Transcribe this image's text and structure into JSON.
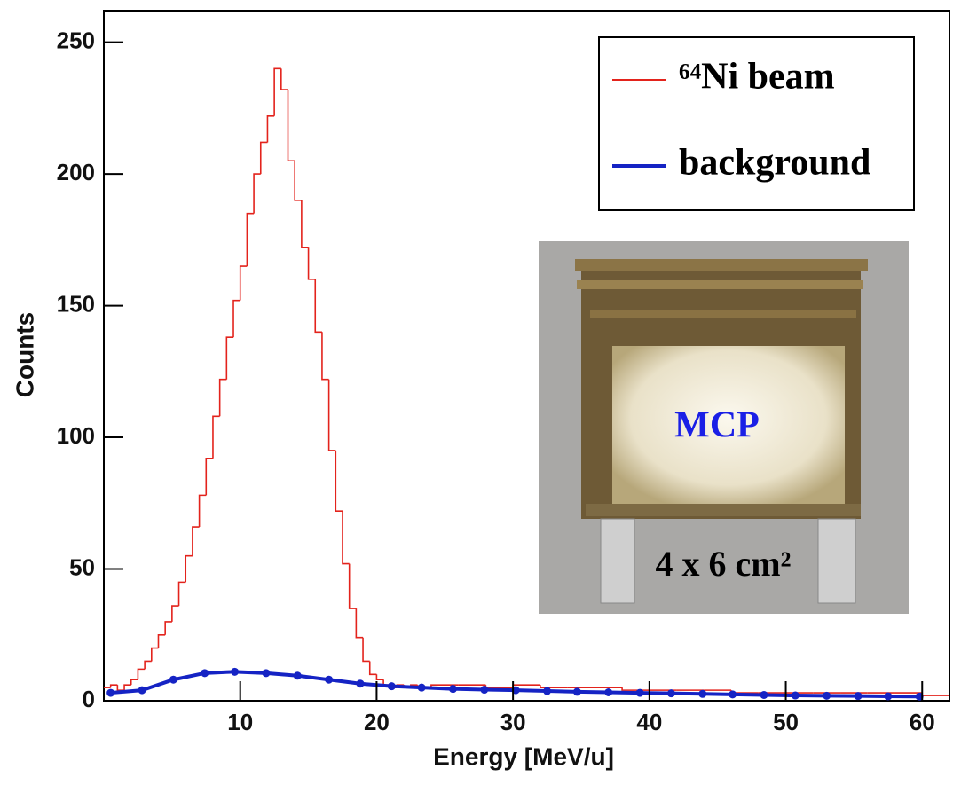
{
  "chart_data": {
    "type": "histogram",
    "xlabel": "Energy [MeV/u]",
    "ylabel": "Counts",
    "bins": [
      0,
      0.5,
      1,
      1.5,
      2,
      2.5,
      3,
      3.5,
      4,
      4.5,
      5,
      5.5,
      6,
      6.5,
      7,
      7.5,
      8,
      8.5,
      9,
      9.5,
      10,
      10.5,
      11,
      11.5,
      12,
      12.5,
      13,
      13.5,
      14,
      14.5,
      15,
      15.5,
      16,
      16.5,
      17,
      17.5,
      18,
      18.5,
      19,
      19.5,
      20,
      20.5,
      21,
      21.5,
      22,
      22.5,
      23,
      23.5,
      24,
      26,
      28,
      30,
      32,
      34,
      36,
      38,
      40,
      42,
      44,
      46,
      48,
      50,
      52,
      54,
      56,
      58,
      60,
      62
    ],
    "series": [
      {
        "name": "⁶⁴Ni beam",
        "color": "#e3231c",
        "values": [
          5,
          6,
          4,
          6,
          8,
          12,
          15,
          20,
          25,
          30,
          36,
          45,
          55,
          66,
          78,
          92,
          108,
          122,
          138,
          152,
          165,
          185,
          200,
          212,
          222,
          240,
          232,
          205,
          190,
          172,
          160,
          140,
          122,
          95,
          72,
          52,
          35,
          24,
          15,
          10,
          8,
          6,
          5,
          6,
          5,
          6,
          5,
          5,
          6,
          6,
          5,
          6,
          5,
          5,
          5,
          4,
          4,
          4,
          4,
          3,
          3,
          3,
          3,
          3,
          3,
          3,
          2
        ]
      },
      {
        "name": "background",
        "color": "#1523c4",
        "type": "line",
        "x": [
          0.5,
          2.8,
          5.1,
          7.4,
          9.6,
          11.9,
          14.2,
          16.5,
          18.8,
          21.1,
          23.3,
          25.6,
          27.9,
          30.2,
          32.5,
          34.7,
          37.0,
          39.3,
          41.6,
          43.9,
          46.1,
          48.4,
          50.7,
          53.0,
          55.3,
          57.5,
          59.8
        ],
        "values": [
          3,
          4,
          8,
          10.5,
          11,
          10.5,
          9.5,
          8,
          6.5,
          5.5,
          5,
          4.5,
          4.2,
          4,
          3.7,
          3.4,
          3.2,
          3,
          2.8,
          2.6,
          2.4,
          2.2,
          2,
          1.9,
          1.8,
          1.7,
          1.6
        ]
      }
    ],
    "xlim": [
      0,
      62
    ],
    "xticks": [
      10,
      20,
      30,
      40,
      50,
      60
    ],
    "ylim": [
      0,
      262
    ],
    "yticks": [
      0,
      50,
      100,
      150,
      200,
      250
    ],
    "annotations": [
      "MCP",
      "4 x 6 cm²"
    ]
  }
}
